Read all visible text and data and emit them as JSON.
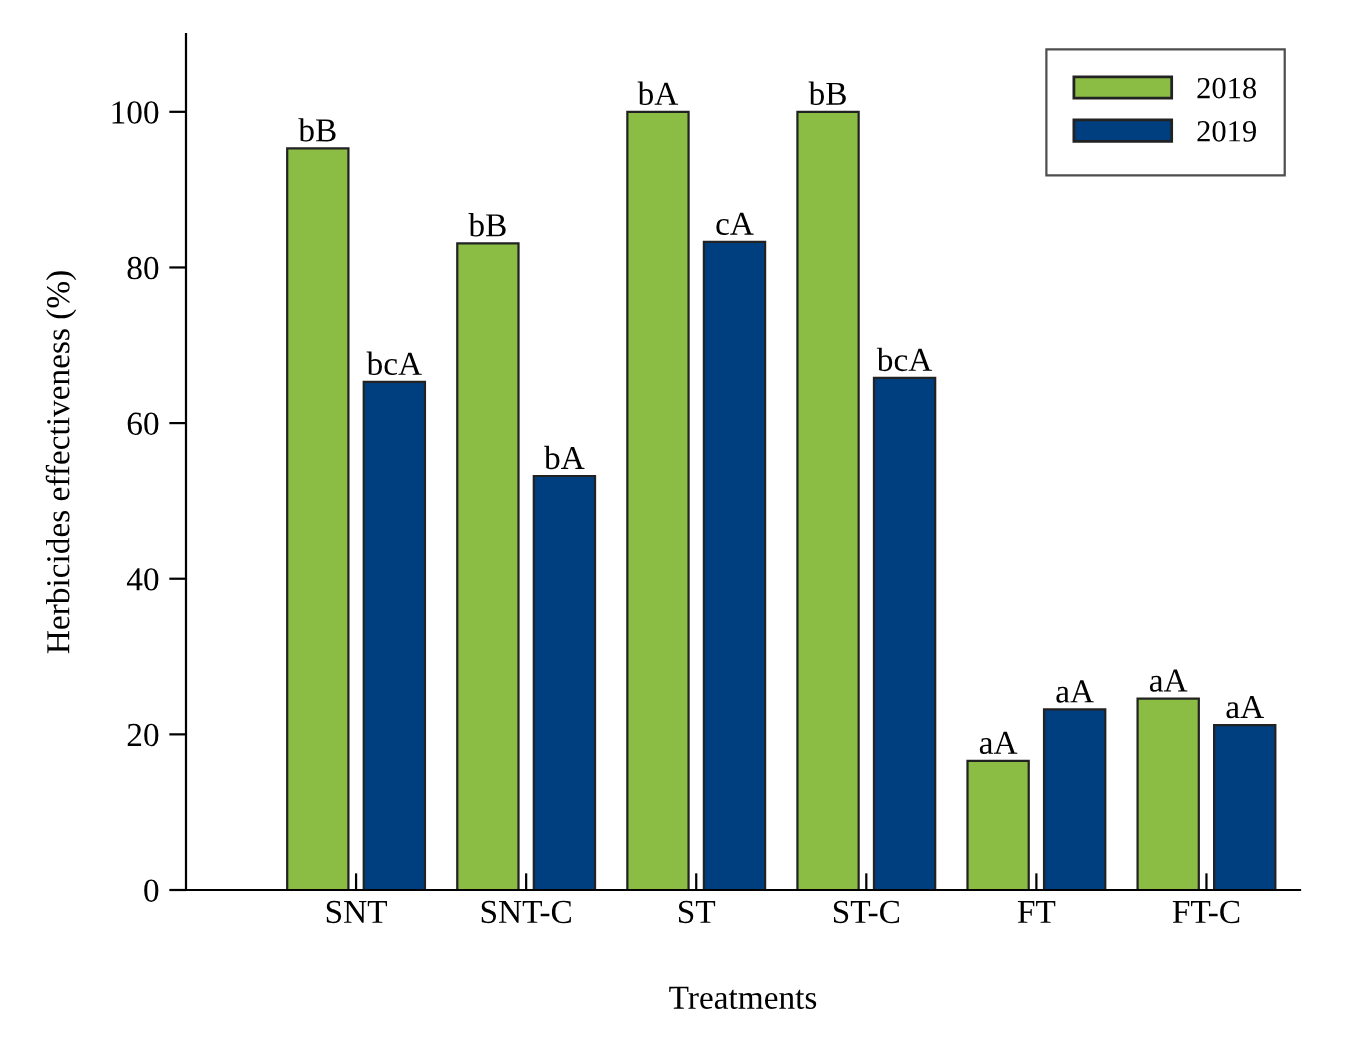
{
  "chart_data": {
    "type": "bar",
    "xlabel": "Treatments",
    "ylabel": "Herbicides effectiveness (%)",
    "categories": [
      "SNT",
      "SNT-C",
      "ST",
      "ST-C",
      "FT",
      "FT-C"
    ],
    "series": [
      {
        "name": "2018",
        "color": "#8bbd45",
        "values": [
          95.3,
          83.1,
          100,
          100,
          16.6,
          24.6
        ],
        "value_labels": [
          "bB",
          "bB",
          "bA",
          "bB",
          "aA",
          "aA"
        ]
      },
      {
        "name": "2019",
        "color": "#003f7f",
        "values": [
          65.3,
          53.2,
          83.3,
          65.8,
          23.2,
          21.2
        ],
        "value_labels": [
          "bcA",
          "bA",
          "cA",
          "bcA",
          "aA",
          "aA"
        ]
      }
    ],
    "ylim": [
      0,
      110
    ],
    "yticks": [
      0,
      20,
      40,
      60,
      80,
      100
    ],
    "grid": false,
    "legend": "top right"
  }
}
